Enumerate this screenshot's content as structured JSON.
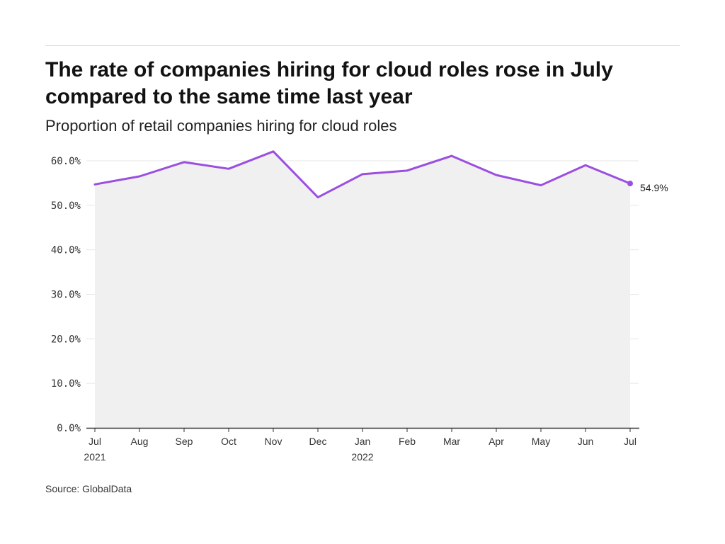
{
  "chart_data": {
    "type": "area",
    "title": "The rate of companies hiring for cloud roles rose in July compared to the same time last year",
    "subtitle": "Proportion of retail companies hiring for cloud roles",
    "categories": [
      "Jul\n2021",
      "Aug",
      "Sep",
      "Oct",
      "Nov",
      "Dec",
      "Jan\n2022",
      "Feb",
      "Mar",
      "Apr",
      "May",
      "Jun",
      "Jul"
    ],
    "series": [
      {
        "values": [
          54.7,
          56.5,
          59.7,
          58.2,
          62.1,
          51.8,
          57.0,
          57.8,
          61.1,
          56.8,
          54.5,
          59.0,
          54.9
        ]
      }
    ],
    "ylim": [
      0,
      60
    ],
    "yticks": [
      "0.0%",
      "10.0%",
      "20.0%",
      "30.0%",
      "40.0%",
      "50.0%",
      "60.0%"
    ],
    "end_label": "54.9%",
    "grid": true,
    "colors": {
      "line": "#9b4fe0",
      "area": "#f0f0f0",
      "grid": "#e6e6e6",
      "axis": "#333333"
    }
  },
  "source": "Source: GlobalData"
}
